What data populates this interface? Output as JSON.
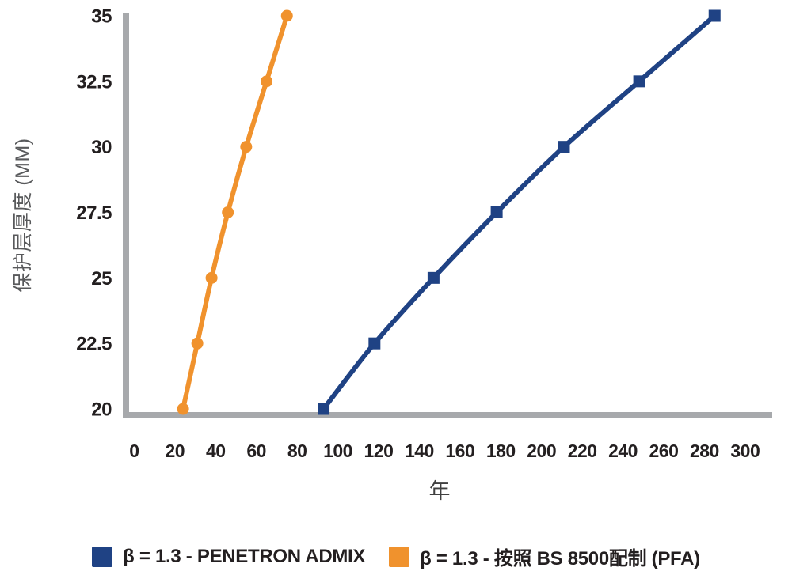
{
  "chart_data": {
    "type": "line",
    "title": "",
    "xlabel": "年",
    "ylabel": "保护层厚度 (MM)",
    "x_ticks": [
      0,
      20,
      40,
      60,
      80,
      100,
      120,
      140,
      160,
      180,
      200,
      220,
      240,
      260,
      280,
      300
    ],
    "y_ticks": [
      20,
      22.5,
      25,
      27.5,
      30,
      32.5,
      35
    ],
    "xlim": [
      0,
      300
    ],
    "ylim": [
      20,
      35
    ],
    "grid": false,
    "legend_position": "bottom-center",
    "axis_color": "#a7a9ac",
    "tick_label_color": "#231f20",
    "axis_title_color": "#58595b",
    "series": [
      {
        "name": "β = 1.3 - PENETRON ADMIX",
        "color": "#1f4284",
        "marker": "square",
        "x": [
          93,
          118,
          147,
          178,
          211,
          248,
          285
        ],
        "y": [
          20,
          22.5,
          25,
          27.5,
          30,
          32.5,
          35
        ]
      },
      {
        "name": "β = 1.3 - 按照 BS 8500配制 (PFA)",
        "color": "#f0922d",
        "marker": "circle",
        "x": [
          24,
          31,
          38,
          46,
          55,
          65,
          75
        ],
        "y": [
          20,
          22.5,
          25,
          27.5,
          30,
          32.5,
          35
        ]
      }
    ]
  }
}
